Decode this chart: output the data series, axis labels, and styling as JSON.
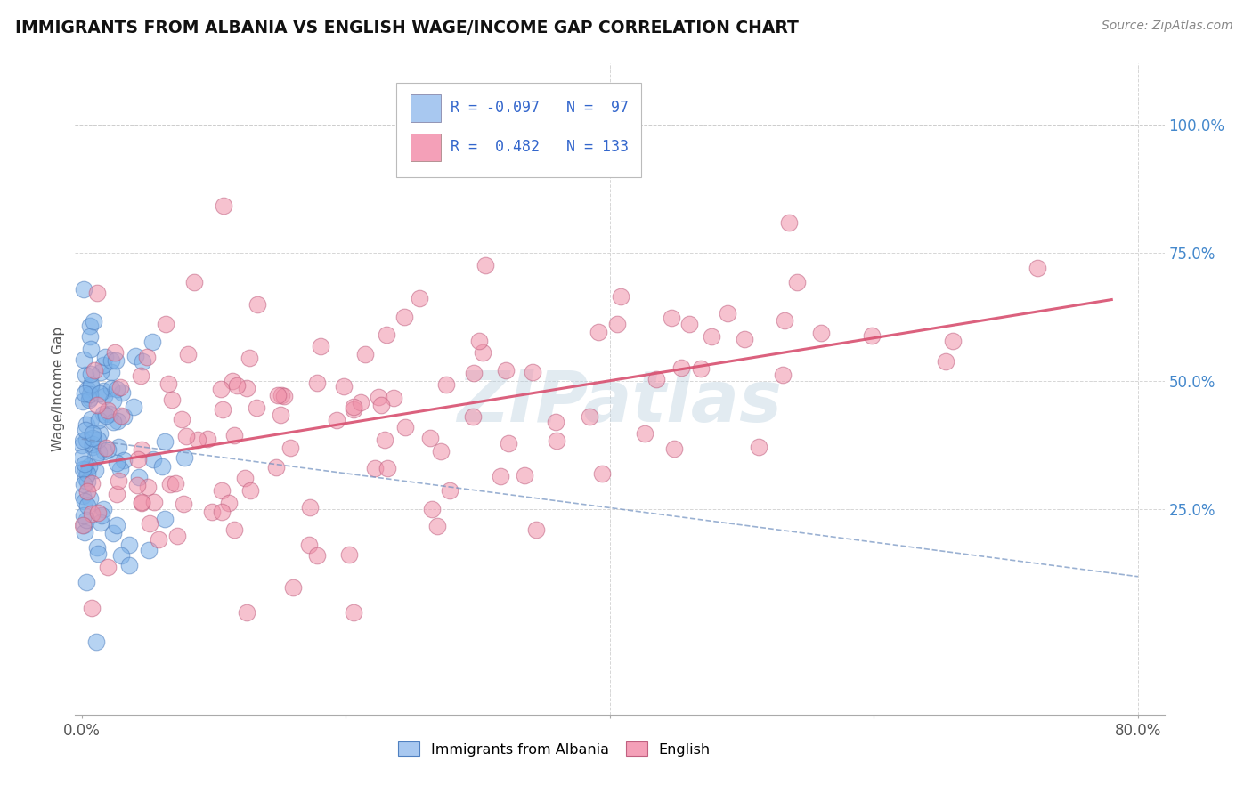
{
  "title": "IMMIGRANTS FROM ALBANIA VS ENGLISH WAGE/INCOME GAP CORRELATION CHART",
  "source_text": "Source: ZipAtlas.com",
  "ylabel": "Wage/Income Gap",
  "xlim": [
    -0.005,
    0.82
  ],
  "ylim": [
    -0.15,
    1.12
  ],
  "xtick_labels": [
    "0.0%",
    "",
    "",
    "",
    "80.0%"
  ],
  "xtick_values": [
    0.0,
    0.2,
    0.4,
    0.6,
    0.8
  ],
  "ytick_labels": [
    "25.0%",
    "50.0%",
    "75.0%",
    "100.0%"
  ],
  "ytick_values": [
    0.25,
    0.5,
    0.75,
    1.0
  ],
  "blue_legend_color": "#A8C8F0",
  "pink_legend_color": "#F4A0B8",
  "blue_dot_color": "#7AB0E8",
  "pink_dot_color": "#F090A8",
  "blue_line_color": "#7090C0",
  "pink_line_color": "#D85070",
  "background_color": "#FFFFFF",
  "grid_color": "#CCCCCC",
  "watermark_text": "ZIPatlas",
  "blue_r": -0.097,
  "blue_n": 97,
  "pink_r": 0.482,
  "pink_n": 133,
  "blue_seed": 42,
  "pink_seed": 7
}
